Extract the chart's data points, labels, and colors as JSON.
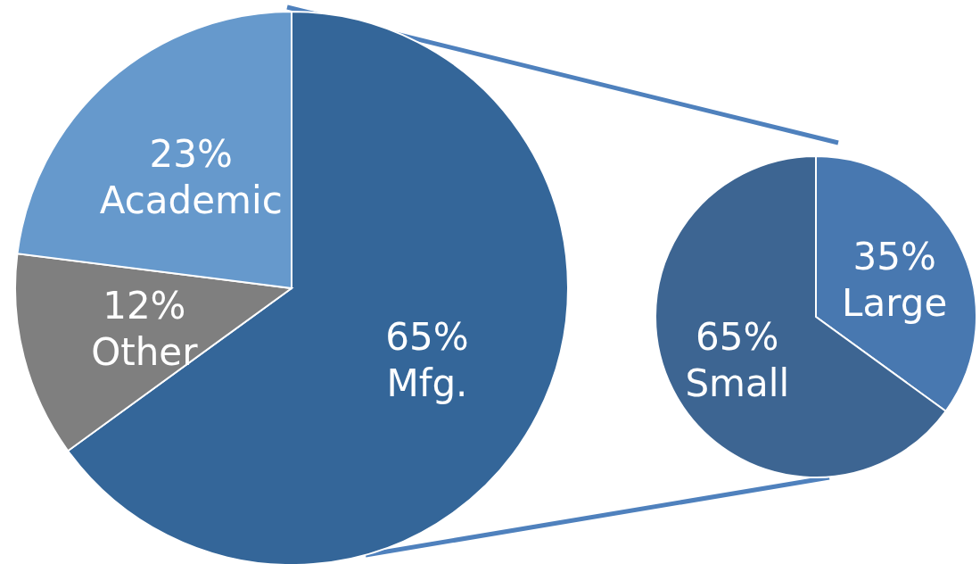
{
  "chart_data": [
    {
      "type": "pie",
      "categories": [
        "Mfg.",
        "Other",
        "Academic"
      ],
      "values": [
        65,
        12,
        23
      ],
      "colors": [
        "#346699",
        "#7f7f7f",
        "#6699cc"
      ],
      "value_labels": [
        "65%",
        "12%",
        "23%"
      ]
    },
    {
      "type": "pie",
      "categories": [
        "Large",
        "Small"
      ],
      "values": [
        35,
        65
      ],
      "colors": [
        "#4878b0",
        "#3d6592"
      ],
      "value_labels": [
        "35%",
        "65%"
      ]
    }
  ]
}
